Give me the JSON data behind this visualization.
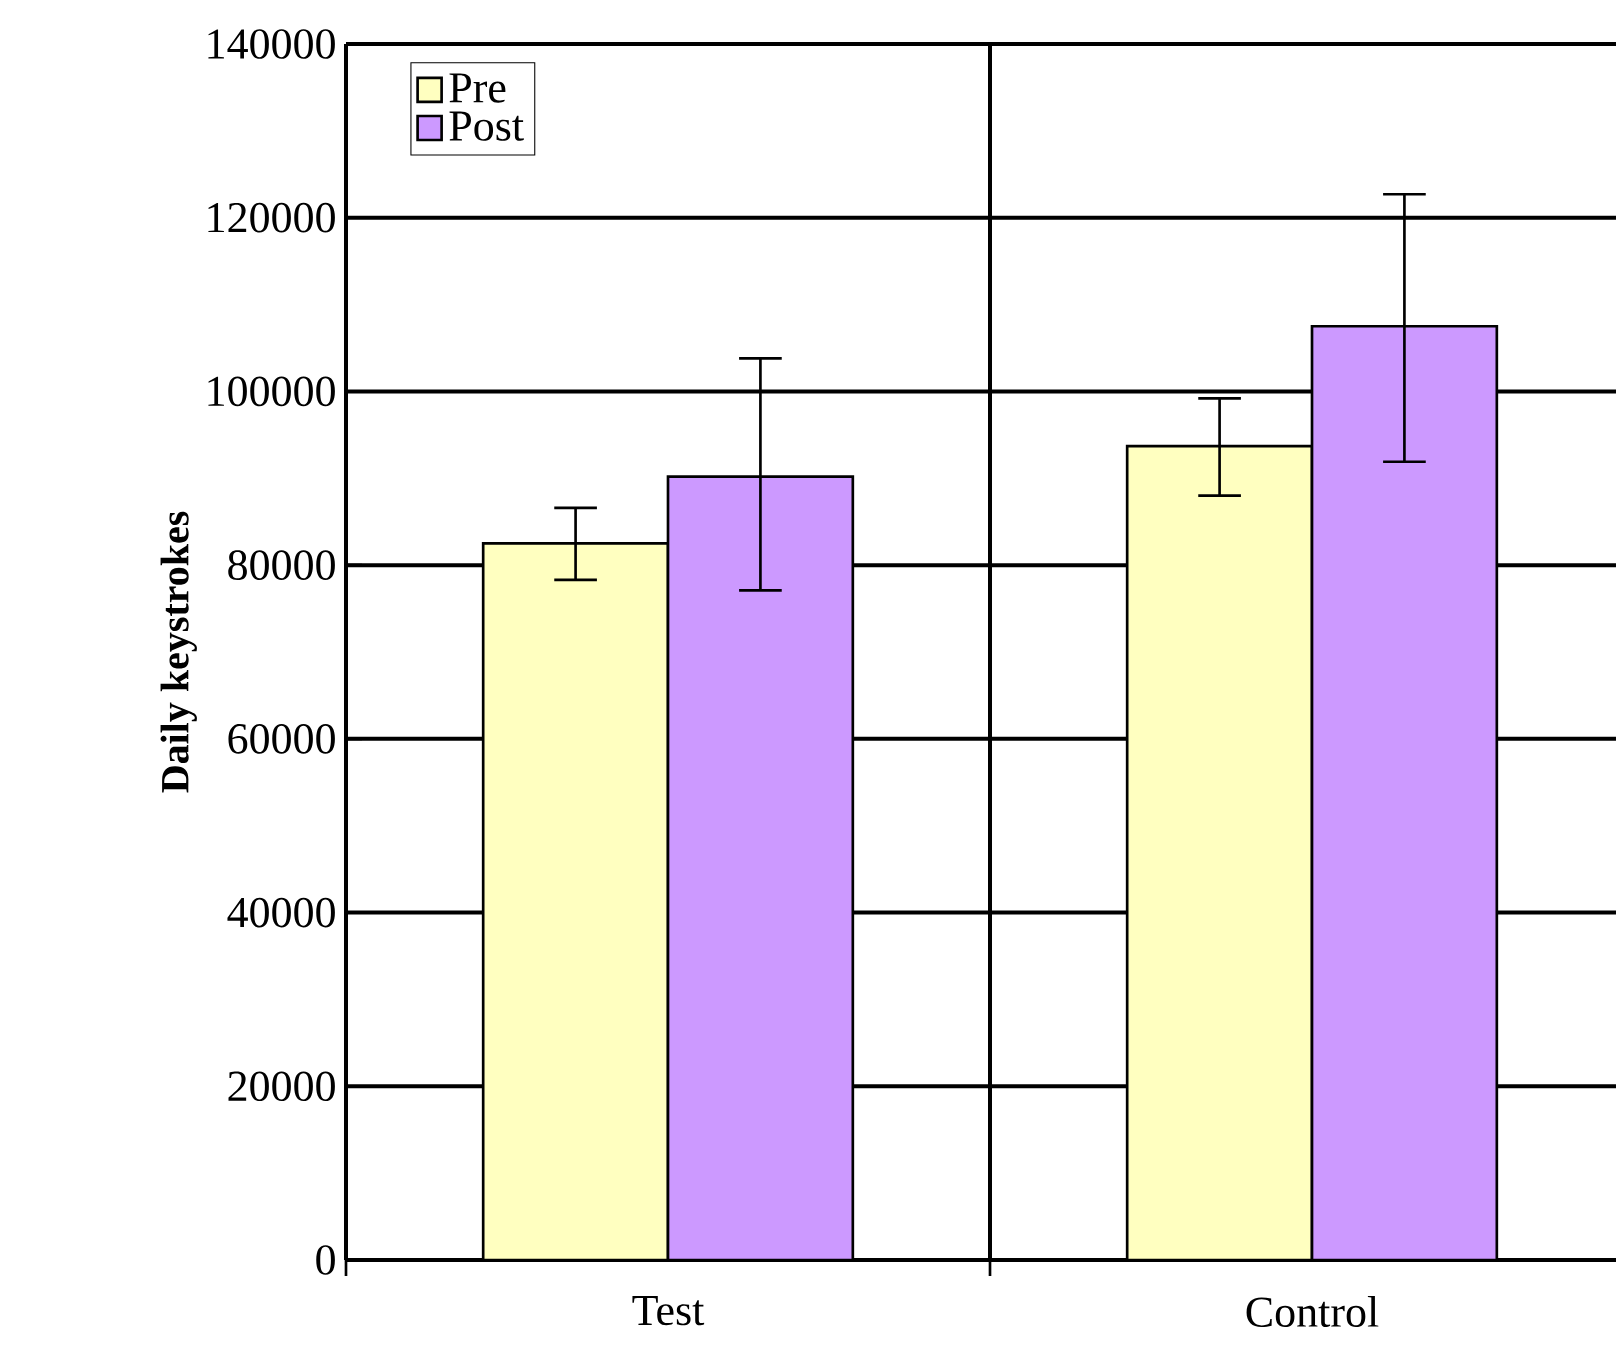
{
  "chart_data": {
    "type": "bar",
    "ylabel": "Daily keystrokes",
    "categories": [
      "Test",
      "Control"
    ],
    "series": [
      {
        "name": "Pre",
        "color": "#ffffc0",
        "values": [
          82500,
          93700
        ],
        "errors": [
          [
            78300,
            86600
          ],
          [
            88000,
            99200
          ]
        ]
      },
      {
        "name": "Post",
        "color": "#cc99ff",
        "values": [
          90200,
          107500
        ],
        "errors": [
          [
            77100,
            103800
          ],
          [
            91900,
            122700
          ]
        ]
      }
    ],
    "ylim": [
      0,
      140000
    ],
    "yticks": [
      0,
      20000,
      40000,
      60000,
      80000,
      100000,
      120000,
      140000
    ],
    "grid": true,
    "legend": "top left"
  }
}
